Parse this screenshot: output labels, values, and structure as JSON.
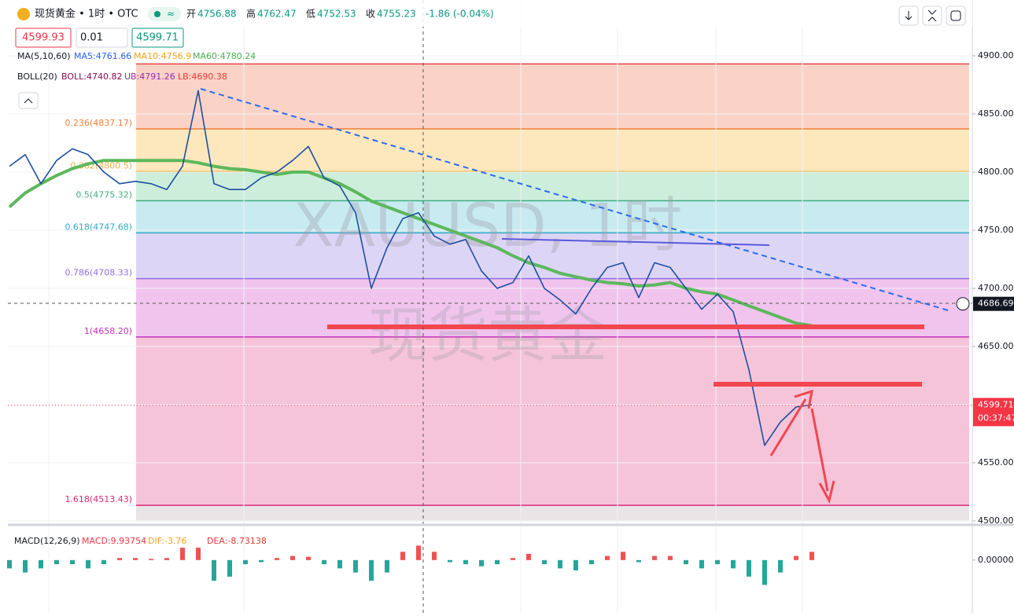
{
  "header": {
    "title": "现货黄金 • 1时 • OTC",
    "open_label": "开",
    "open": "4756.88",
    "high_label": "高",
    "high": "4762.47",
    "low_label": "低",
    "low": "4752.53",
    "close_label": "收",
    "close": "4755.23",
    "change": "-1.86 (-0.04%)"
  },
  "order": {
    "sell": "4599.93",
    "quantity": "0.01",
    "buy": "4599.71"
  },
  "legends": {
    "ma": "MA(5,10,60)",
    "ma5": "MA5:4761.66",
    "ma10": "MA10:4756.9",
    "ma60": "MA60:4780.24",
    "boll": "BOLL(20)",
    "boll_mid": "BOLL:4740.82",
    "boll_ub": "UB:4791.26",
    "boll_lb": "LB:4690.38",
    "macd": "MACD(12,26,9)",
    "macd_value": "MACD:9.93754",
    "dif": "DIF:-3.76",
    "dea": "DEA:-8.73138"
  },
  "watermark": {
    "symbol": "XAUUSD, 1时",
    "name": "现货黄金"
  },
  "chart_data": [
    {
      "type": "line",
      "color": "#1e4fa0",
      "values": [
        4805,
        4815,
        4790,
        4810,
        4820,
        4815,
        4800,
        4790,
        4792,
        4790,
        4785,
        4805,
        4870,
        4790,
        4785,
        4785,
        4795,
        4800,
        4810,
        4822,
        4795,
        4788,
        4765,
        4700,
        4735,
        4760,
        4765,
        4745,
        4738,
        4742,
        4715,
        4700,
        4705,
        4728,
        4700,
        4690,
        4678,
        4700,
        4718,
        4722,
        4692,
        4722,
        4718,
        4700,
        4682,
        4695,
        4680,
        4630,
        4565,
        4585,
        4598,
        4600
      ],
      "ma60_color": "#5cb85c",
      "ma60_values": [
        4770,
        4782,
        4790,
        4797,
        4803,
        4807,
        4810,
        4810,
        4810,
        4810,
        4810,
        4810,
        4808,
        4805,
        4803,
        4802,
        4800,
        4798,
        4800,
        4800,
        4795,
        4790,
        4783,
        4775,
        4770,
        4765,
        4760,
        4755,
        4750,
        4745,
        4740,
        4735,
        4728,
        4722,
        4718,
        4713,
        4710,
        4707,
        4705,
        4704,
        4702,
        4703,
        4705,
        4700,
        4697,
        4695,
        4690,
        4685,
        4680,
        4675,
        4670,
        4668
      ],
      "ylim": [
        4500,
        4900
      ],
      "yticks": [
        {
          "value": 4900,
          "label": "4900.00"
        },
        {
          "value": 4850,
          "label": "4850.00"
        },
        {
          "value": 4800,
          "label": "4800.00"
        },
        {
          "value": 4750,
          "label": "4750.00"
        },
        {
          "value": 4700,
          "label": "4700.00"
        },
        {
          "value": 4650,
          "label": "4650.00"
        },
        {
          "value": 4600,
          "label": "4600.00"
        },
        {
          "value": 4550,
          "label": "4550.00"
        },
        {
          "value": 4500,
          "label": "4500.00"
        }
      ],
      "grid": true,
      "levels": [
        {
          "value": 4893,
          "color": "#e04848",
          "fill": "#fbd3c6"
        },
        {
          "value": 4837.17,
          "label": "0.236(4837.17)",
          "color": "#ef7f3a",
          "fill": "#fde7bd"
        },
        {
          "value": 4800.5,
          "label": "0.382(4800.5)",
          "color": "#f0b040",
          "fill": "#cdeedb"
        },
        {
          "value": 4775.32,
          "label": "0.5(4775.32)",
          "color": "#3fae7c",
          "fill": "#c8ebf1"
        },
        {
          "value": 4747.68,
          "label": "0.618(4747.68)",
          "color": "#34a8c8",
          "fill": "#ddd5f5"
        },
        {
          "value": 4708.33,
          "label": "0.786(4708.33)",
          "color": "#9070e0",
          "fill": "#f1c4ee"
        },
        {
          "value": 4658.2,
          "label": "1(4658.20)",
          "color": "#c630c0",
          "fill": "#f6c4d9"
        },
        {
          "value": 4513.43,
          "label": "1.618(4513.43)",
          "color": "#d62a7a",
          "fill": "#e9e4e6"
        }
      ],
      "crosshair_price": 4686.69,
      "last_price": 4599.71,
      "countdown": "00:37:47"
    },
    {
      "type": "bar",
      "up_color": "#ef5350",
      "down_color": "#26a69a",
      "values": [
        -2,
        -3,
        -2,
        -1,
        -1,
        -2,
        -1,
        0.5,
        0.5,
        0.3,
        0.5,
        3,
        3,
        -5,
        -4,
        -1,
        -0.5,
        0.5,
        1,
        0.8,
        -1,
        -2,
        -3,
        -5,
        -3,
        2,
        3.5,
        2,
        -0.5,
        -1,
        -1.5,
        -1,
        0.5,
        1.5,
        -1,
        -2,
        -2.5,
        -1,
        1,
        2,
        -0.5,
        1,
        1,
        -1,
        -2,
        -1,
        -2,
        -4,
        -6,
        -3,
        1,
        2
      ],
      "ylim": [
        -12,
        7
      ],
      "yticks": [
        {
          "value": 0,
          "label": "0.00000"
        }
      ]
    }
  ]
}
